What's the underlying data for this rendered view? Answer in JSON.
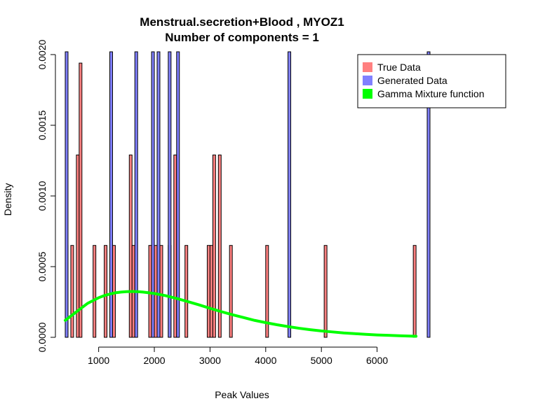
{
  "chart_data": {
    "type": "histogram",
    "title_line1": "Menstrual.secretion+Blood , MYOZ1",
    "title_line2": "Number of components =  1",
    "xlabel": "Peak Values",
    "ylabel": "Density",
    "xlim": [
      400,
      6950
    ],
    "ylim": [
      0,
      0.002
    ],
    "x_ticks": [
      1000,
      2000,
      3000,
      4000,
      5000,
      6000
    ],
    "x_tick_labels": [
      "1000",
      "2000",
      "3000",
      "4000",
      "5000",
      "6000"
    ],
    "y_ticks": [
      0,
      0.0005,
      0.001,
      0.0015,
      0.002
    ],
    "y_tick_labels": [
      "0.0000",
      "0.0005",
      "0.0010",
      "0.0015",
      "0.0020"
    ],
    "bin_width": 50,
    "series": [
      {
        "name": "True Data",
        "color": "#ff8080",
        "bins": [
          {
            "x0": 400,
            "y": 0.00065
          },
          {
            "x0": 500,
            "y": 0.00065
          },
          {
            "x0": 600,
            "y": 0.00129
          },
          {
            "x0": 650,
            "y": 0.00194
          },
          {
            "x0": 900,
            "y": 0.00065
          },
          {
            "x0": 1100,
            "y": 0.00065
          },
          {
            "x0": 1250,
            "y": 0.00065
          },
          {
            "x0": 1550,
            "y": 0.00129
          },
          {
            "x0": 1600,
            "y": 0.00065
          },
          {
            "x0": 1900,
            "y": 0.00065
          },
          {
            "x0": 1950,
            "y": 0.00065
          },
          {
            "x0": 2000,
            "y": 0.00065
          },
          {
            "x0": 2100,
            "y": 0.00065
          },
          {
            "x0": 2250,
            "y": 0.00065
          },
          {
            "x0": 2350,
            "y": 0.00129
          },
          {
            "x0": 2550,
            "y": 0.00065
          },
          {
            "x0": 2950,
            "y": 0.00065
          },
          {
            "x0": 3000,
            "y": 0.00065
          },
          {
            "x0": 3050,
            "y": 0.00129
          },
          {
            "x0": 3150,
            "y": 0.00129
          },
          {
            "x0": 3350,
            "y": 0.00065
          },
          {
            "x0": 4000,
            "y": 0.00065
          },
          {
            "x0": 5050,
            "y": 0.00065
          },
          {
            "x0": 6650,
            "y": 0.00065
          }
        ]
      },
      {
        "name": "Generated Data",
        "color": "#8080ff",
        "bins": [
          {
            "x0": 400,
            "y": 0.0021
          },
          {
            "x0": 1200,
            "y": 0.0021
          },
          {
            "x0": 1650,
            "y": 0.0021
          },
          {
            "x0": 1950,
            "y": 0.0021
          },
          {
            "x0": 2050,
            "y": 0.0021
          },
          {
            "x0": 2250,
            "y": 0.0021
          },
          {
            "x0": 2400,
            "y": 0.0021
          },
          {
            "x0": 4400,
            "y": 0.0021
          },
          {
            "x0": 6900,
            "y": 0.0021
          }
        ]
      },
      {
        "name": "Gamma Mixture function",
        "color": "#00ff00",
        "curve": [
          {
            "x": 400,
            "y": 0.00012
          },
          {
            "x": 500,
            "y": 0.00015
          },
          {
            "x": 600,
            "y": 0.00018
          },
          {
            "x": 700,
            "y": 0.00021
          },
          {
            "x": 800,
            "y": 0.00024
          },
          {
            "x": 900,
            "y": 0.00026
          },
          {
            "x": 1000,
            "y": 0.00028
          },
          {
            "x": 1100,
            "y": 0.000295
          },
          {
            "x": 1200,
            "y": 0.000306
          },
          {
            "x": 1300,
            "y": 0.000315
          },
          {
            "x": 1400,
            "y": 0.00032
          },
          {
            "x": 1500,
            "y": 0.000323
          },
          {
            "x": 1600,
            "y": 0.000324
          },
          {
            "x": 1700,
            "y": 0.000323
          },
          {
            "x": 1800,
            "y": 0.00032
          },
          {
            "x": 2000,
            "y": 0.00031
          },
          {
            "x": 2200,
            "y": 0.000295
          },
          {
            "x": 2400,
            "y": 0.000275
          },
          {
            "x": 2600,
            "y": 0.000253
          },
          {
            "x": 2800,
            "y": 0.00023
          },
          {
            "x": 3000,
            "y": 0.000205
          },
          {
            "x": 3200,
            "y": 0.000182
          },
          {
            "x": 3400,
            "y": 0.00016
          },
          {
            "x": 3600,
            "y": 0.00014
          },
          {
            "x": 3800,
            "y": 0.00012
          },
          {
            "x": 4000,
            "y": 0.000104
          },
          {
            "x": 4200,
            "y": 8.9e-05
          },
          {
            "x": 4400,
            "y": 7.6e-05
          },
          {
            "x": 4600,
            "y": 6.4e-05
          },
          {
            "x": 4800,
            "y": 5.4e-05
          },
          {
            "x": 5000,
            "y": 4.5e-05
          },
          {
            "x": 5200,
            "y": 3.8e-05
          },
          {
            "x": 5400,
            "y": 3.1e-05
          },
          {
            "x": 5600,
            "y": 2.6e-05
          },
          {
            "x": 5800,
            "y": 2.1e-05
          },
          {
            "x": 6000,
            "y": 1.7e-05
          },
          {
            "x": 6200,
            "y": 1.4e-05
          },
          {
            "x": 6400,
            "y": 1.1e-05
          },
          {
            "x": 6600,
            "y": 8.5e-06
          },
          {
            "x": 6700,
            "y": 7.5e-06
          }
        ]
      }
    ],
    "legend": {
      "placement": "top-right",
      "items": [
        {
          "label": "True Data",
          "color": "#ff8080"
        },
        {
          "label": "Generated Data",
          "color": "#8080ff"
        },
        {
          "label": "Gamma Mixture function",
          "color": "#00ff00"
        }
      ]
    }
  }
}
